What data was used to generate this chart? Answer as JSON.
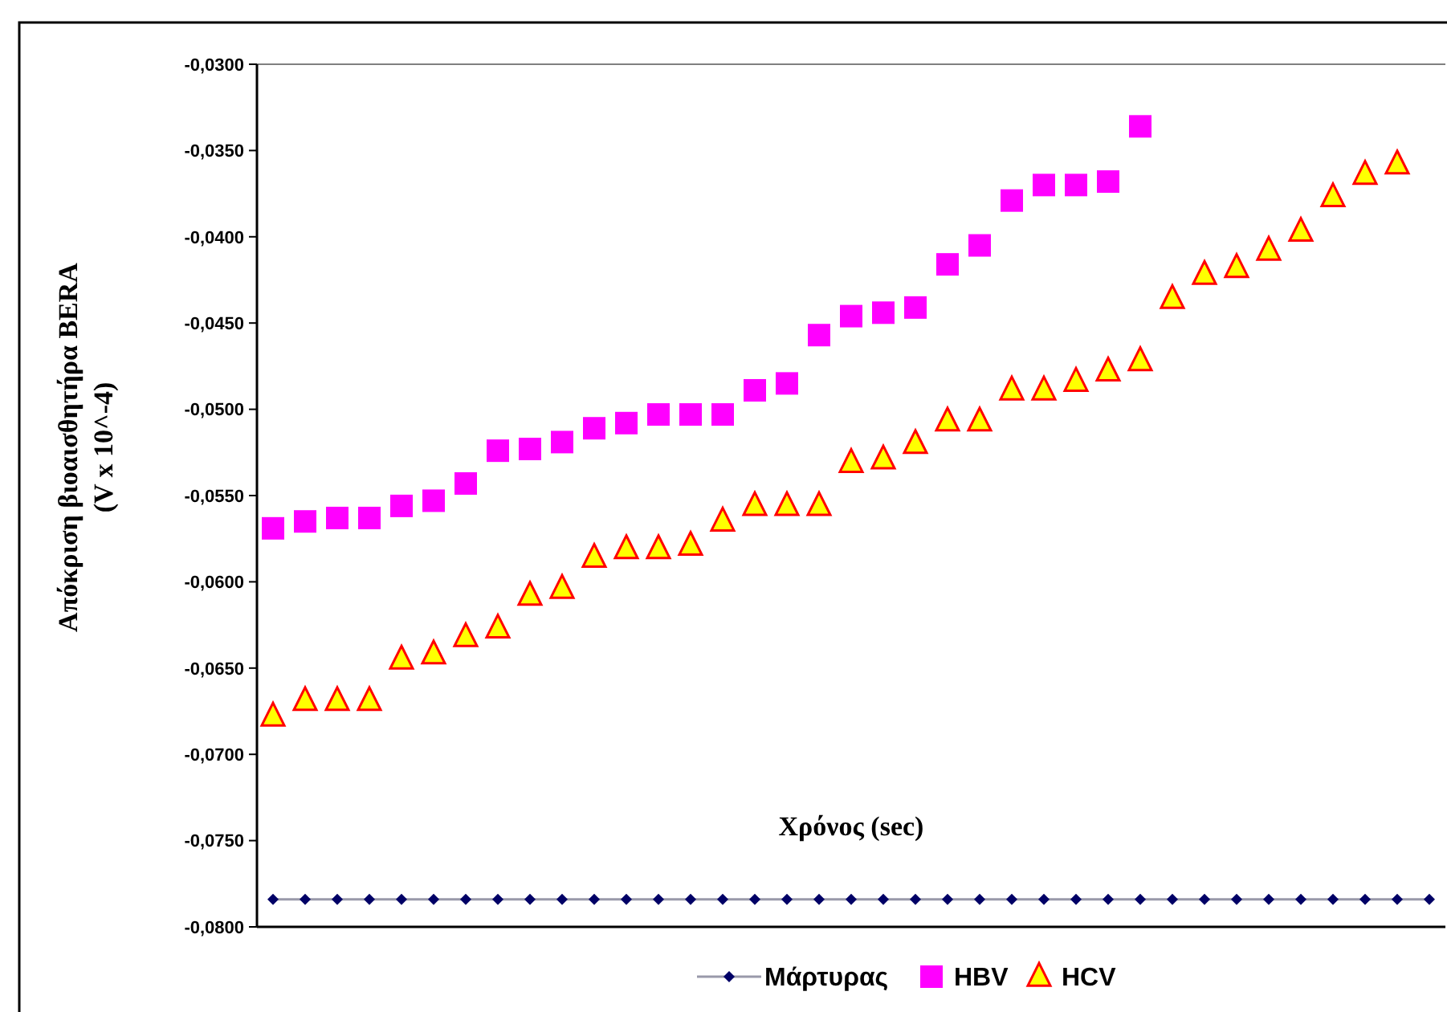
{
  "chart_data": {
    "type": "scatter",
    "xlabel": "Χρόνος (sec)",
    "ylabel": "Απόκριση βιοαισθητήρα BERA\n(V x 10^-4)",
    "categories": [
      null,
      null,
      null,
      null,
      null,
      null,
      null,
      null,
      null,
      null,
      null,
      null,
      null,
      null,
      null,
      null,
      null,
      null,
      null,
      null,
      null,
      null,
      null,
      null,
      null,
      null,
      null,
      null,
      null,
      null,
      null,
      null,
      null,
      null,
      null,
      null,
      null
    ],
    "series": [
      {
        "name": "Μάρτυρας",
        "type": "line",
        "marker": "diamond",
        "color": "#000066",
        "values": [
          -0.0784,
          -0.0784,
          -0.0784,
          -0.0784,
          -0.0784,
          -0.0784,
          -0.0784,
          -0.0784,
          -0.0784,
          -0.0784,
          -0.0784,
          -0.0784,
          -0.0784,
          -0.0784,
          -0.0784,
          -0.0784,
          -0.0784,
          -0.0784,
          -0.0784,
          -0.0784,
          -0.0784,
          -0.0784,
          -0.0784,
          -0.0784,
          -0.0784,
          -0.0784,
          -0.0784,
          -0.0784,
          -0.0784,
          -0.0784,
          -0.0784,
          -0.0784,
          -0.0784,
          -0.0784,
          -0.0784,
          -0.0784,
          -0.0784
        ]
      },
      {
        "name": "HBV",
        "marker": "square",
        "color": "#ff00ff",
        "values": [
          -0.0569,
          -0.0565,
          -0.0563,
          -0.0563,
          -0.0556,
          -0.0553,
          -0.0543,
          -0.0524,
          -0.0523,
          -0.0519,
          -0.0511,
          -0.0508,
          -0.0503,
          -0.0503,
          -0.0503,
          -0.0489,
          -0.0485,
          -0.0457,
          -0.0446,
          -0.0444,
          -0.0441,
          -0.0416,
          -0.0405,
          -0.0379,
          -0.037,
          -0.037,
          -0.0368,
          -0.0336,
          null,
          null,
          null,
          null,
          null,
          null,
          null,
          null,
          null
        ]
      },
      {
        "name": "HCV",
        "marker": "triangle",
        "color": "#ffff00",
        "values": [
          -0.0678,
          -0.0669,
          -0.0669,
          -0.0669,
          -0.0645,
          -0.0642,
          -0.0632,
          -0.0627,
          -0.0608,
          -0.0604,
          -0.0586,
          -0.0581,
          -0.0581,
          -0.0579,
          -0.0565,
          -0.0556,
          -0.0556,
          -0.0556,
          -0.0531,
          -0.0529,
          -0.052,
          -0.0507,
          -0.0507,
          -0.0489,
          -0.0489,
          -0.0484,
          -0.0478,
          -0.0472,
          -0.0436,
          -0.0422,
          -0.0418,
          -0.0408,
          -0.0397,
          -0.0377,
          -0.0364,
          -0.0358,
          null
        ]
      }
    ],
    "ylim": [
      -0.08,
      -0.03
    ],
    "yticks": [
      {
        "value": -0.08,
        "label": "-0,0800"
      },
      {
        "value": -0.075,
        "label": "-0,0750"
      },
      {
        "value": -0.07,
        "label": "-0,0700"
      },
      {
        "value": -0.065,
        "label": "-0,0650"
      },
      {
        "value": -0.06,
        "label": "-0,0600"
      },
      {
        "value": -0.055,
        "label": "-0,0550"
      },
      {
        "value": -0.05,
        "label": "-0,0500"
      },
      {
        "value": -0.045,
        "label": "-0,0450"
      },
      {
        "value": -0.04,
        "label": "-0,0400"
      },
      {
        "value": -0.035,
        "label": "-0,0350"
      },
      {
        "value": -0.03,
        "label": "-0,0300"
      }
    ],
    "tick_labels": "y",
    "grid": false,
    "legend": "bottom"
  }
}
